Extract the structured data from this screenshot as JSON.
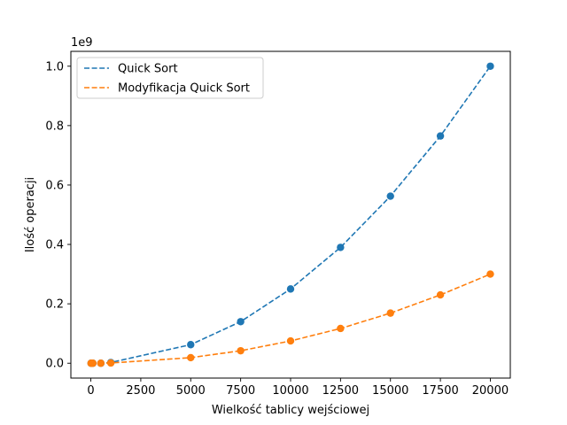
{
  "chart_data": {
    "type": "line",
    "xlabel": "Wielkość tablicy wejściowej",
    "ylabel": "Ilość operacji",
    "y_offset_label": "1e9",
    "y_scale": 1000000000,
    "xlim": [
      -1000,
      21000
    ],
    "ylim": [
      -0.05,
      1.05
    ],
    "x_ticks": [
      0,
      2500,
      5000,
      7500,
      10000,
      12500,
      15000,
      17500,
      20000
    ],
    "y_ticks": [
      0.0,
      0.2,
      0.4,
      0.6,
      0.8,
      1.0
    ],
    "x_tick_labels": [
      "0",
      "2500",
      "5000",
      "7500",
      "10000",
      "12500",
      "15000",
      "17500",
      "20000"
    ],
    "y_tick_labels": [
      "0.0",
      "0.2",
      "0.4",
      "0.6",
      "0.8",
      "1.0"
    ],
    "legend_position": "top-left",
    "grid": false,
    "x": [
      10,
      50,
      100,
      500,
      1000,
      5000,
      7500,
      10000,
      12500,
      15000,
      17500,
      20000
    ],
    "series": [
      {
        "name": "Quick Sort",
        "color": "#1f77b4",
        "line_style": "dashed",
        "marker": "circle",
        "values": [
          0.0,
          0.0,
          0.0,
          0.0,
          0.0025,
          0.0625,
          0.14,
          0.25,
          0.39,
          0.5625,
          0.765,
          1.0
        ]
      },
      {
        "name": "Modyfikacja Quick Sort",
        "color": "#ff7f0e",
        "line_style": "dashed",
        "marker": "circle",
        "values": [
          0.0,
          0.0,
          0.0,
          0.0,
          0.00075,
          0.01875,
          0.042,
          0.075,
          0.117,
          0.16875,
          0.23,
          0.3
        ]
      }
    ]
  }
}
